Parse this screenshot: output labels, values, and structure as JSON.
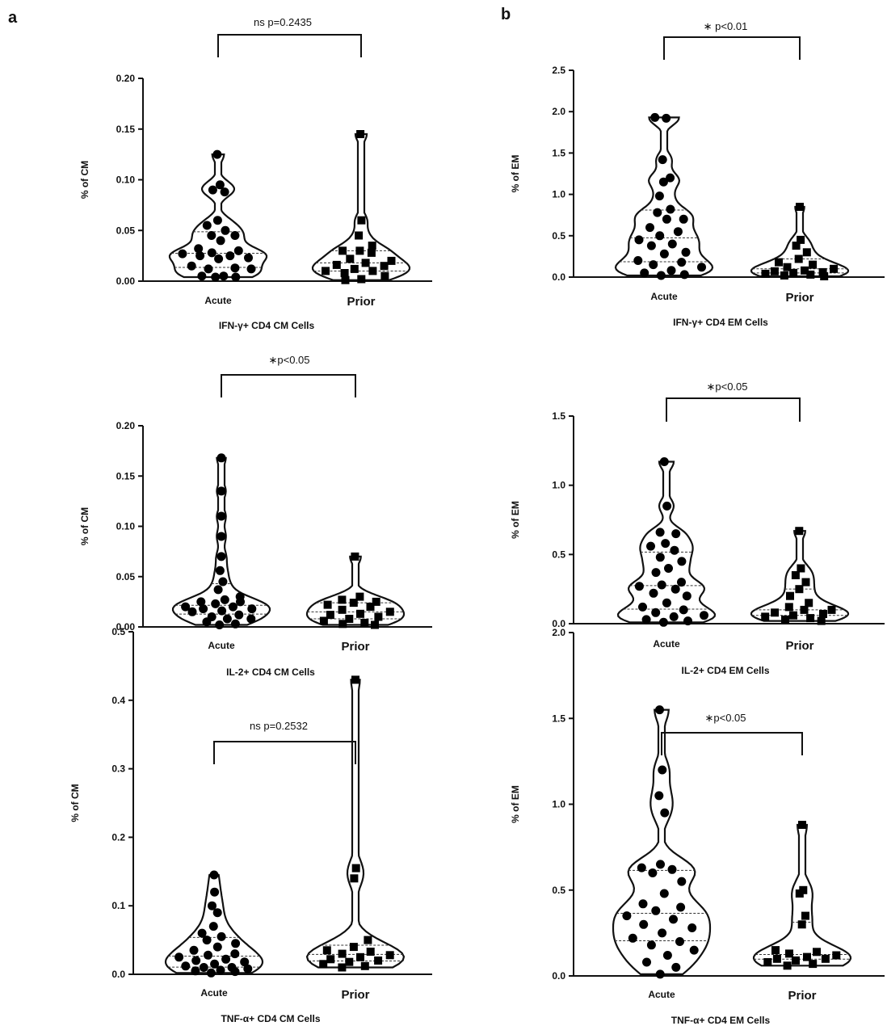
{
  "panel_labels": [
    "a",
    "b"
  ],
  "chart_data": [
    {
      "type": "violin",
      "panel": "a",
      "title": "IFN-γ+ CD4 CM Cells",
      "ylabel": "% of CM",
      "ylim": [
        0,
        0.2
      ],
      "yticks": [
        "0.00",
        "0.05",
        "0.10",
        "0.15",
        "0.20"
      ],
      "categories": [
        "Acute",
        "Prior"
      ],
      "significance": "ns p=0.2435",
      "series": [
        {
          "values": [
            0.125,
            0.095,
            0.09,
            0.088,
            0.06,
            0.055,
            0.05,
            0.045,
            0.045,
            0.04,
            0.032,
            0.03,
            0.028,
            0.027,
            0.025,
            0.025,
            0.023,
            0.022,
            0.015,
            0.013,
            0.012,
            0.012,
            0.005,
            0.005,
            0.004,
            0.004
          ]
        },
        {
          "values": [
            0.145,
            0.06,
            0.045,
            0.035,
            0.03,
            0.03,
            0.028,
            0.022,
            0.02,
            0.018,
            0.016,
            0.015,
            0.012,
            0.01,
            0.01,
            0.008,
            0.005,
            0.002,
            0.001
          ]
        }
      ]
    },
    {
      "type": "violin",
      "panel": "a",
      "title": "IL-2+ CD4 CM Cells",
      "ylabel": "% of CM",
      "ylim": [
        0,
        0.2
      ],
      "yticks": [
        "0.00",
        "0.05",
        "0.10",
        "0.15",
        "0.20"
      ],
      "categories": [
        "Acute",
        "Prior"
      ],
      "significance": "∗p<0.05",
      "series": [
        {
          "values": [
            0.168,
            0.135,
            0.11,
            0.09,
            0.07,
            0.056,
            0.045,
            0.037,
            0.03,
            0.027,
            0.025,
            0.025,
            0.023,
            0.02,
            0.02,
            0.018,
            0.018,
            0.016,
            0.015,
            0.012,
            0.01,
            0.008,
            0.008,
            0.005,
            0.003,
            0.002
          ]
        },
        {
          "values": [
            0.07,
            0.03,
            0.027,
            0.025,
            0.024,
            0.022,
            0.02,
            0.017,
            0.015,
            0.013,
            0.012,
            0.01,
            0.008,
            0.006,
            0.004,
            0.003,
            0.002
          ]
        }
      ]
    },
    {
      "type": "violin",
      "panel": "a",
      "title": "TNF-α+ CD4 CM Cells",
      "ylabel": "% of CM",
      "ylim": [
        0,
        0.5
      ],
      "yticks": [
        "0.0",
        "0.1",
        "0.2",
        "0.3",
        "0.4",
        "0.5"
      ],
      "categories": [
        "Acute",
        "Prior"
      ],
      "significance": "ns p=0.2532",
      "series": [
        {
          "values": [
            0.145,
            0.12,
            0.1,
            0.09,
            0.07,
            0.06,
            0.055,
            0.05,
            0.045,
            0.04,
            0.035,
            0.03,
            0.028,
            0.025,
            0.022,
            0.02,
            0.018,
            0.015,
            0.012,
            0.01,
            0.01,
            0.008,
            0.006,
            0.005,
            0.004,
            0.002
          ]
        },
        {
          "values": [
            0.43,
            0.155,
            0.14,
            0.05,
            0.04,
            0.035,
            0.033,
            0.03,
            0.028,
            0.025,
            0.022,
            0.02,
            0.018,
            0.015,
            0.012,
            0.01
          ]
        }
      ]
    },
    {
      "type": "violin",
      "panel": "b",
      "title": "IFN-γ+ CD4 EM Cells",
      "ylabel": "% of EM",
      "ylim": [
        0,
        2.5
      ],
      "yticks": [
        "0.0",
        "0.5",
        "1.0",
        "1.5",
        "2.0",
        "2.5"
      ],
      "categories": [
        "Acute",
        "Prior"
      ],
      "significance": "∗  p<0.01",
      "series": [
        {
          "values": [
            1.93,
            1.92,
            1.42,
            1.2,
            1.15,
            0.98,
            0.82,
            0.78,
            0.7,
            0.7,
            0.6,
            0.55,
            0.5,
            0.45,
            0.4,
            0.38,
            0.3,
            0.28,
            0.2,
            0.18,
            0.15,
            0.12,
            0.08,
            0.05,
            0.03,
            0.02
          ]
        },
        {
          "values": [
            0.85,
            0.45,
            0.38,
            0.3,
            0.22,
            0.18,
            0.15,
            0.12,
            0.1,
            0.08,
            0.07,
            0.06,
            0.05,
            0.04,
            0.03,
            0.02,
            0.01
          ]
        }
      ]
    },
    {
      "type": "violin",
      "panel": "b",
      "title": "IL-2+ CD4 EM Cells",
      "ylabel": "% of EM",
      "ylim": [
        0,
        1.5
      ],
      "yticks": [
        "0.0",
        "0.5",
        "1.0",
        "1.5"
      ],
      "categories": [
        "Acute",
        "Prior"
      ],
      "significance": "∗p<0.05",
      "series": [
        {
          "values": [
            1.17,
            0.85,
            0.66,
            0.65,
            0.58,
            0.56,
            0.53,
            0.48,
            0.45,
            0.4,
            0.37,
            0.3,
            0.28,
            0.27,
            0.25,
            0.22,
            0.2,
            0.15,
            0.12,
            0.1,
            0.08,
            0.06,
            0.05,
            0.03,
            0.02,
            0.01
          ]
        },
        {
          "values": [
            0.67,
            0.4,
            0.35,
            0.3,
            0.25,
            0.2,
            0.15,
            0.12,
            0.1,
            0.1,
            0.08,
            0.07,
            0.06,
            0.05,
            0.04,
            0.03,
            0.02
          ]
        }
      ]
    },
    {
      "type": "violin",
      "panel": "b",
      "title": "TNF-α+ CD4 EM Cells",
      "ylabel": "% of EM",
      "ylim": [
        0,
        2.0
      ],
      "yticks": [
        "0.0",
        "0.5",
        "1.0",
        "1.5",
        "2.0"
      ],
      "categories": [
        "Acute",
        "Prior"
      ],
      "significance": "∗p<0.05",
      "series": [
        {
          "values": [
            1.55,
            1.2,
            1.05,
            0.95,
            0.65,
            0.63,
            0.62,
            0.6,
            0.55,
            0.48,
            0.42,
            0.4,
            0.38,
            0.35,
            0.33,
            0.3,
            0.28,
            0.25,
            0.22,
            0.2,
            0.18,
            0.15,
            0.12,
            0.08,
            0.05,
            0.01
          ]
        },
        {
          "values": [
            0.88,
            0.5,
            0.48,
            0.35,
            0.3,
            0.15,
            0.14,
            0.13,
            0.12,
            0.11,
            0.1,
            0.1,
            0.09,
            0.08,
            0.07,
            0.06
          ]
        }
      ]
    }
  ]
}
